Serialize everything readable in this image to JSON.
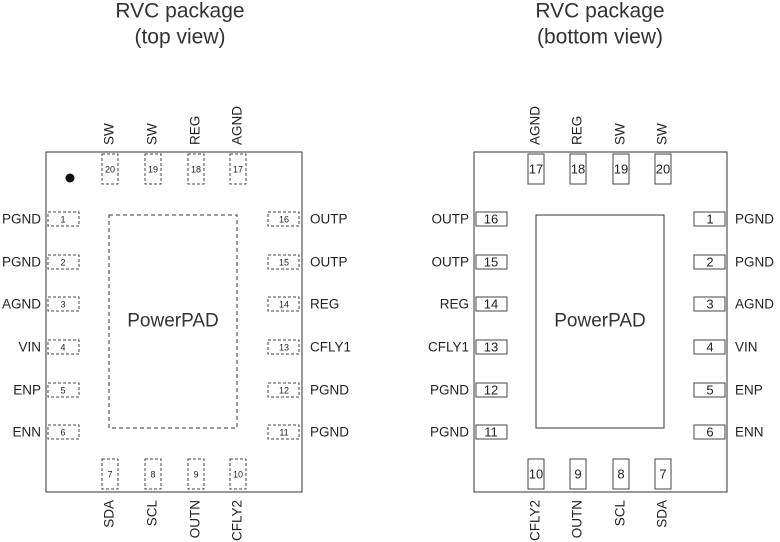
{
  "views": [
    {
      "title": "RVC package",
      "subtitle": "(top view)",
      "pad_label": "PowerPAD",
      "left_pins": [
        {
          "number": 1,
          "name": "PGND"
        },
        {
          "number": 2,
          "name": "PGND"
        },
        {
          "number": 3,
          "name": "AGND"
        },
        {
          "number": 4,
          "name": "VIN"
        },
        {
          "number": 5,
          "name": "ENP"
        },
        {
          "number": 6,
          "name": "ENN"
        }
      ],
      "right_pins": [
        {
          "number": 16,
          "name": "OUTP"
        },
        {
          "number": 15,
          "name": "OUTP"
        },
        {
          "number": 14,
          "name": "REG"
        },
        {
          "number": 13,
          "name": "CFLY1"
        },
        {
          "number": 12,
          "name": "PGND"
        },
        {
          "number": 11,
          "name": "PGND"
        }
      ],
      "top_pins": [
        {
          "number": 20,
          "name": "SW"
        },
        {
          "number": 19,
          "name": "SW"
        },
        {
          "number": 18,
          "name": "REG"
        },
        {
          "number": 17,
          "name": "AGND"
        }
      ],
      "bottom_pins": [
        {
          "number": 7,
          "name": "SDA"
        },
        {
          "number": 8,
          "name": "SCL"
        },
        {
          "number": 9,
          "name": "OUTN"
        },
        {
          "number": 10,
          "name": "CFLY2"
        }
      ]
    },
    {
      "title": "RVC package",
      "subtitle": "(bottom view)",
      "pad_label": "PowerPAD",
      "left_pins": [
        {
          "number": 16,
          "name": "OUTP"
        },
        {
          "number": 15,
          "name": "OUTP"
        },
        {
          "number": 14,
          "name": "REG"
        },
        {
          "number": 13,
          "name": "CFLY1"
        },
        {
          "number": 12,
          "name": "PGND"
        },
        {
          "number": 11,
          "name": "PGND"
        }
      ],
      "right_pins": [
        {
          "number": 1,
          "name": "PGND"
        },
        {
          "number": 2,
          "name": "PGND"
        },
        {
          "number": 3,
          "name": "AGND"
        },
        {
          "number": 4,
          "name": "VIN"
        },
        {
          "number": 5,
          "name": "ENP"
        },
        {
          "number": 6,
          "name": "ENN"
        }
      ],
      "top_pins": [
        {
          "number": 17,
          "name": "AGND"
        },
        {
          "number": 18,
          "name": "REG"
        },
        {
          "number": 19,
          "name": "SW"
        },
        {
          "number": 20,
          "name": "SW"
        }
      ],
      "bottom_pins": [
        {
          "number": 10,
          "name": "CFLY2"
        },
        {
          "number": 9,
          "name": "OUTN"
        },
        {
          "number": 8,
          "name": "SCL"
        },
        {
          "number": 7,
          "name": "SDA"
        }
      ]
    }
  ]
}
